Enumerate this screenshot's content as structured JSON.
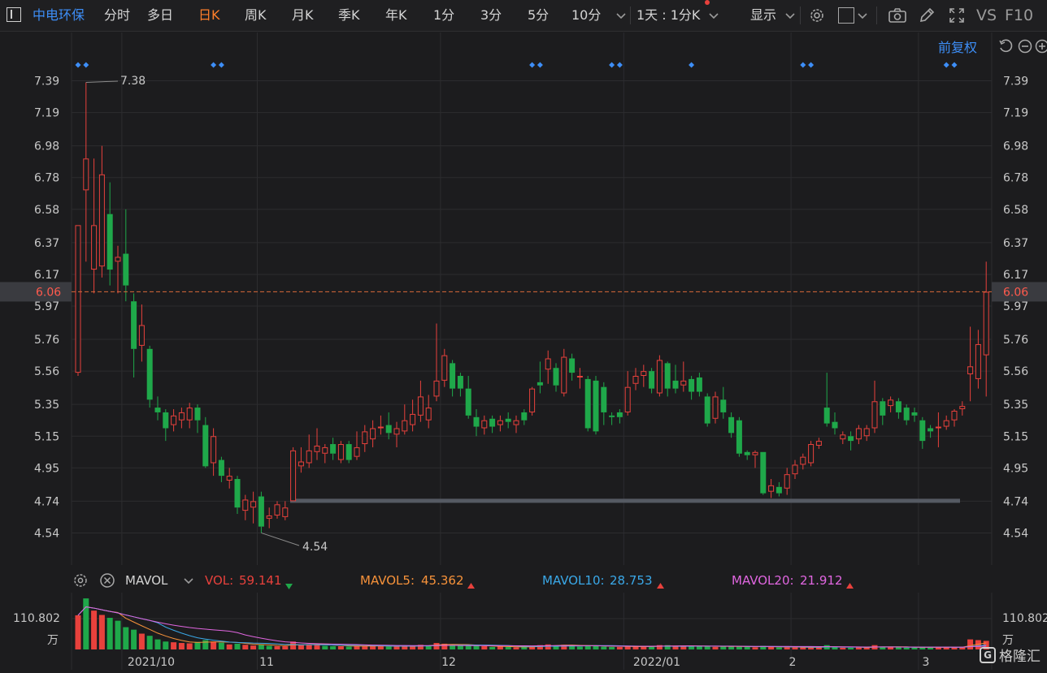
{
  "toolbar": {
    "stock_name": "中电环保",
    "periods": [
      "分时",
      "多日",
      "日K",
      "周K",
      "月K",
      "季K",
      "年K",
      "1分",
      "3分",
      "5分",
      "10分"
    ],
    "active_period": "日K",
    "range_select": "1天 : 1分K",
    "display_label": "显示",
    "vs_label": "VS",
    "f10_label": "F10"
  },
  "price_panel": {
    "adjust_label": "前复权",
    "y_ticks": [
      "7.39",
      "7.19",
      "6.98",
      "6.78",
      "6.58",
      "6.37",
      "6.17",
      "5.97",
      "5.76",
      "5.56",
      "5.35",
      "5.15",
      "4.95",
      "4.74",
      "4.54"
    ],
    "current_price": "6.06",
    "high_label": "7.38",
    "low_label": "4.54",
    "colors": {
      "up": "#e8413c",
      "down": "#1fa84a",
      "current_line": "#d96a3a",
      "grid": "#2c2c2f",
      "marker": "#3d8ef7",
      "support": "#555a63"
    }
  },
  "volume_panel": {
    "indicator": "MAVOL",
    "vol_label": "VOL:",
    "vol_value": "59.141",
    "mavol5_label": "MAVOL5:",
    "mavol5_value": "45.362",
    "mavol10_label": "MAVOL10:",
    "mavol10_value": "28.753",
    "mavol20_label": "MAVOL20:",
    "mavol20_value": "21.912",
    "max_label": "110.802",
    "unit_label": "万",
    "colors": {
      "vol": "#e8413c",
      "mavol5": "#f7923a",
      "mavol10": "#3aa8e8",
      "mavol20": "#e066e0"
    }
  },
  "x_axis": {
    "labels": [
      "2021/10",
      "11",
      "12",
      "2022/01",
      "2",
      "3"
    ]
  },
  "watermark": {
    "text": "格隆汇"
  },
  "chart_data": {
    "type": "candlestick",
    "title": "",
    "ylim": [
      4.44,
      7.49
    ],
    "candles": [
      {
        "o": 5.55,
        "c": 6.48,
        "h": 6.48,
        "l": 5.53
      },
      {
        "o": 6.7,
        "c": 6.9,
        "h": 7.38,
        "l": 6.25
      },
      {
        "o": 6.2,
        "c": 6.48,
        "h": 6.9,
        "l": 6.05
      },
      {
        "o": 6.22,
        "c": 6.8,
        "h": 6.98,
        "l": 6.15
      },
      {
        "o": 6.55,
        "c": 6.2,
        "h": 6.75,
        "l": 6.1
      },
      {
        "o": 6.25,
        "c": 6.28,
        "h": 6.35,
        "l": 6.05
      },
      {
        "o": 6.3,
        "c": 6.1,
        "h": 6.58,
        "l": 6.0
      },
      {
        "o": 6.0,
        "c": 5.7,
        "h": 6.05,
        "l": 5.52
      },
      {
        "o": 5.72,
        "c": 5.85,
        "h": 5.98,
        "l": 5.62
      },
      {
        "o": 5.7,
        "c": 5.38,
        "h": 5.72,
        "l": 5.33
      },
      {
        "o": 5.33,
        "c": 5.3,
        "h": 5.4,
        "l": 5.25
      },
      {
        "o": 5.3,
        "c": 5.2,
        "h": 5.32,
        "l": 5.12
      },
      {
        "o": 5.22,
        "c": 5.28,
        "h": 5.32,
        "l": 5.18
      },
      {
        "o": 5.25,
        "c": 5.3,
        "h": 5.33,
        "l": 5.2
      },
      {
        "o": 5.25,
        "c": 5.33,
        "h": 5.36,
        "l": 5.2
      },
      {
        "o": 5.33,
        "c": 5.25,
        "h": 5.35,
        "l": 5.17
      },
      {
        "o": 5.22,
        "c": 4.96,
        "h": 5.27,
        "l": 4.95
      },
      {
        "o": 4.98,
        "c": 5.15,
        "h": 5.2,
        "l": 4.9
      },
      {
        "o": 5.0,
        "c": 4.9,
        "h": 5.02,
        "l": 4.86
      },
      {
        "o": 4.87,
        "c": 4.9,
        "h": 4.95,
        "l": 4.82
      },
      {
        "o": 4.88,
        "c": 4.7,
        "h": 4.9,
        "l": 4.66
      },
      {
        "o": 4.68,
        "c": 4.75,
        "h": 4.78,
        "l": 4.62
      },
      {
        "o": 4.7,
        "c": 4.74,
        "h": 4.8,
        "l": 4.6
      },
      {
        "o": 4.77,
        "c": 4.58,
        "h": 4.8,
        "l": 4.54
      },
      {
        "o": 4.63,
        "c": 4.65,
        "h": 4.7,
        "l": 4.57
      },
      {
        "o": 4.65,
        "c": 4.72,
        "h": 4.74,
        "l": 4.63
      },
      {
        "o": 4.64,
        "c": 4.7,
        "h": 4.74,
        "l": 4.62
      },
      {
        "o": 4.74,
        "c": 5.06,
        "h": 5.08,
        "l": 4.74
      },
      {
        "o": 4.96,
        "c": 4.99,
        "h": 5.08,
        "l": 4.92
      },
      {
        "o": 4.98,
        "c": 5.06,
        "h": 5.16,
        "l": 4.95
      },
      {
        "o": 5.05,
        "c": 5.09,
        "h": 5.2,
        "l": 5.0
      },
      {
        "o": 5.04,
        "c": 5.08,
        "h": 5.1,
        "l": 4.98
      },
      {
        "o": 5.1,
        "c": 5.04,
        "h": 5.14,
        "l": 5.0
      },
      {
        "o": 5.0,
        "c": 5.1,
        "h": 5.12,
        "l": 4.98
      },
      {
        "o": 5.1,
        "c": 5.0,
        "h": 5.12,
        "l": 4.98
      },
      {
        "o": 5.02,
        "c": 5.08,
        "h": 5.18,
        "l": 5.0
      },
      {
        "o": 5.1,
        "c": 5.18,
        "h": 5.22,
        "l": 5.05
      },
      {
        "o": 5.13,
        "c": 5.2,
        "h": 5.25,
        "l": 5.08
      },
      {
        "o": 5.2,
        "c": 5.21,
        "h": 5.28,
        "l": 5.16
      },
      {
        "o": 5.22,
        "c": 5.17,
        "h": 5.3,
        "l": 5.13
      },
      {
        "o": 5.16,
        "c": 5.2,
        "h": 5.24,
        "l": 5.08
      },
      {
        "o": 5.18,
        "c": 5.25,
        "h": 5.35,
        "l": 5.16
      },
      {
        "o": 5.22,
        "c": 5.29,
        "h": 5.38,
        "l": 5.18
      },
      {
        "o": 5.28,
        "c": 5.4,
        "h": 5.5,
        "l": 5.24
      },
      {
        "o": 5.25,
        "c": 5.33,
        "h": 5.41,
        "l": 5.2
      },
      {
        "o": 5.4,
        "c": 5.5,
        "h": 5.86,
        "l": 5.37
      },
      {
        "o": 5.5,
        "c": 5.66,
        "h": 5.7,
        "l": 5.46
      },
      {
        "o": 5.61,
        "c": 5.45,
        "h": 5.63,
        "l": 5.4
      },
      {
        "o": 5.53,
        "c": 5.45,
        "h": 5.55,
        "l": 5.4
      },
      {
        "o": 5.45,
        "c": 5.28,
        "h": 5.53,
        "l": 5.26
      },
      {
        "o": 5.27,
        "c": 5.21,
        "h": 5.32,
        "l": 5.15
      },
      {
        "o": 5.2,
        "c": 5.25,
        "h": 5.28,
        "l": 5.16
      },
      {
        "o": 5.26,
        "c": 5.21,
        "h": 5.28,
        "l": 5.17
      },
      {
        "o": 5.22,
        "c": 5.25,
        "h": 5.28,
        "l": 5.18
      },
      {
        "o": 5.26,
        "c": 5.24,
        "h": 5.3,
        "l": 5.2
      },
      {
        "o": 5.22,
        "c": 5.25,
        "h": 5.28,
        "l": 5.17
      },
      {
        "o": 5.3,
        "c": 5.25,
        "h": 5.32,
        "l": 5.22
      },
      {
        "o": 5.3,
        "c": 5.45,
        "h": 5.46,
        "l": 5.28
      },
      {
        "o": 5.49,
        "c": 5.47,
        "h": 5.62,
        "l": 5.42
      },
      {
        "o": 5.57,
        "c": 5.64,
        "h": 5.69,
        "l": 5.48
      },
      {
        "o": 5.58,
        "c": 5.47,
        "h": 5.61,
        "l": 5.43
      },
      {
        "o": 5.42,
        "c": 5.65,
        "h": 5.7,
        "l": 5.4
      },
      {
        "o": 5.64,
        "c": 5.55,
        "h": 5.67,
        "l": 5.5
      },
      {
        "o": 5.52,
        "c": 5.53,
        "h": 5.58,
        "l": 5.45
      },
      {
        "o": 5.51,
        "c": 5.2,
        "h": 5.53,
        "l": 5.18
      },
      {
        "o": 5.5,
        "c": 5.18,
        "h": 5.53,
        "l": 5.16
      },
      {
        "o": 5.46,
        "c": 5.3,
        "h": 5.49,
        "l": 5.22
      },
      {
        "o": 5.28,
        "c": 5.27,
        "h": 5.3,
        "l": 5.22
      },
      {
        "o": 5.3,
        "c": 5.27,
        "h": 5.32,
        "l": 5.23
      },
      {
        "o": 5.3,
        "c": 5.46,
        "h": 5.56,
        "l": 5.28
      },
      {
        "o": 5.48,
        "c": 5.53,
        "h": 5.58,
        "l": 5.44
      },
      {
        "o": 5.53,
        "c": 5.56,
        "h": 5.6,
        "l": 5.46
      },
      {
        "o": 5.56,
        "c": 5.45,
        "h": 5.58,
        "l": 5.42
      },
      {
        "o": 5.42,
        "c": 5.63,
        "h": 5.66,
        "l": 5.4
      },
      {
        "o": 5.61,
        "c": 5.45,
        "h": 5.62,
        "l": 5.4
      },
      {
        "o": 5.5,
        "c": 5.45,
        "h": 5.6,
        "l": 5.42
      },
      {
        "o": 5.47,
        "c": 5.5,
        "h": 5.62,
        "l": 5.43
      },
      {
        "o": 5.51,
        "c": 5.43,
        "h": 5.53,
        "l": 5.38
      },
      {
        "o": 5.52,
        "c": 5.43,
        "h": 5.55,
        "l": 5.4
      },
      {
        "o": 5.4,
        "c": 5.23,
        "h": 5.42,
        "l": 5.21
      },
      {
        "o": 5.26,
        "c": 5.4,
        "h": 5.43,
        "l": 5.23
      },
      {
        "o": 5.38,
        "c": 5.3,
        "h": 5.46,
        "l": 5.26
      },
      {
        "o": 5.27,
        "c": 5.17,
        "h": 5.3,
        "l": 5.14
      },
      {
        "o": 5.25,
        "c": 5.04,
        "h": 5.27,
        "l": 5.02
      },
      {
        "o": 5.05,
        "c": 5.03,
        "h": 5.06,
        "l": 5.0
      },
      {
        "o": 5.03,
        "c": 5.05,
        "h": 5.06,
        "l": 4.95
      },
      {
        "o": 5.05,
        "c": 4.79,
        "h": 5.05,
        "l": 4.78
      },
      {
        "o": 4.8,
        "c": 4.84,
        "h": 4.88,
        "l": 4.76
      },
      {
        "o": 4.83,
        "c": 4.79,
        "h": 4.86,
        "l": 4.77
      },
      {
        "o": 4.82,
        "c": 4.91,
        "h": 4.95,
        "l": 4.78
      },
      {
        "o": 4.91,
        "c": 4.97,
        "h": 5.0,
        "l": 4.88
      },
      {
        "o": 4.97,
        "c": 5.02,
        "h": 5.04,
        "l": 4.94
      },
      {
        "o": 4.98,
        "c": 5.1,
        "h": 5.12,
        "l": 4.96
      },
      {
        "o": 5.09,
        "c": 5.12,
        "h": 5.14,
        "l": 5.07
      },
      {
        "o": 5.33,
        "c": 5.23,
        "h": 5.55,
        "l": 5.21
      },
      {
        "o": 5.24,
        "c": 5.2,
        "h": 5.3,
        "l": 5.16
      },
      {
        "o": 5.13,
        "c": 5.16,
        "h": 5.18,
        "l": 5.1
      },
      {
        "o": 5.15,
        "c": 5.12,
        "h": 5.18,
        "l": 5.06
      },
      {
        "o": 5.13,
        "c": 5.2,
        "h": 5.22,
        "l": 5.1
      },
      {
        "o": 5.15,
        "c": 5.2,
        "h": 5.22,
        "l": 5.12
      },
      {
        "o": 5.2,
        "c": 5.37,
        "h": 5.5,
        "l": 5.17
      },
      {
        "o": 5.37,
        "c": 5.28,
        "h": 5.39,
        "l": 5.22
      },
      {
        "o": 5.34,
        "c": 5.38,
        "h": 5.4,
        "l": 5.3
      },
      {
        "o": 5.37,
        "c": 5.3,
        "h": 5.39,
        "l": 5.26
      },
      {
        "o": 5.33,
        "c": 5.25,
        "h": 5.35,
        "l": 5.22
      },
      {
        "o": 5.3,
        "c": 5.28,
        "h": 5.33,
        "l": 5.24
      },
      {
        "o": 5.25,
        "c": 5.12,
        "h": 5.27,
        "l": 5.07
      },
      {
        "o": 5.2,
        "c": 5.18,
        "h": 5.22,
        "l": 5.14
      },
      {
        "o": 5.2,
        "c": 5.21,
        "h": 5.3,
        "l": 5.08
      },
      {
        "o": 5.21,
        "c": 5.25,
        "h": 5.28,
        "l": 5.19
      },
      {
        "o": 5.25,
        "c": 5.31,
        "h": 5.32,
        "l": 5.21
      },
      {
        "o": 5.32,
        "c": 5.34,
        "h": 5.37,
        "l": 5.28
      },
      {
        "o": 5.54,
        "c": 5.59,
        "h": 5.84,
        "l": 5.37
      },
      {
        "o": 5.51,
        "c": 5.73,
        "h": 5.82,
        "l": 5.45
      },
      {
        "o": 5.66,
        "c": 6.06,
        "h": 6.25,
        "l": 5.4
      }
    ],
    "volume": [
      {
        "v": 95,
        "up": 1
      },
      {
        "v": 142,
        "up": 0
      },
      {
        "v": 108,
        "up": 1
      },
      {
        "v": 96,
        "up": 1
      },
      {
        "v": 88,
        "up": 0
      },
      {
        "v": 80,
        "up": 0
      },
      {
        "v": 62,
        "up": 0
      },
      {
        "v": 55,
        "up": 0
      },
      {
        "v": 44,
        "up": 1
      },
      {
        "v": 38,
        "up": 0
      },
      {
        "v": 28,
        "up": 0
      },
      {
        "v": 22,
        "up": 0
      },
      {
        "v": 20,
        "up": 1
      },
      {
        "v": 18,
        "up": 1
      },
      {
        "v": 17,
        "up": 1
      },
      {
        "v": 21,
        "up": 0
      },
      {
        "v": 26,
        "up": 0
      },
      {
        "v": 22,
        "up": 1
      },
      {
        "v": 19,
        "up": 0
      },
      {
        "v": 14,
        "up": 1
      },
      {
        "v": 16,
        "up": 0
      },
      {
        "v": 13,
        "up": 1
      },
      {
        "v": 11,
        "up": 1
      },
      {
        "v": 14,
        "up": 0
      },
      {
        "v": 10,
        "up": 0
      },
      {
        "v": 9,
        "up": 1
      },
      {
        "v": 9,
        "up": 1
      },
      {
        "v": 22,
        "up": 1
      },
      {
        "v": 13,
        "up": 1
      },
      {
        "v": 15,
        "up": 1
      },
      {
        "v": 13,
        "up": 1
      },
      {
        "v": 10,
        "up": 0
      },
      {
        "v": 9,
        "up": 0
      },
      {
        "v": 9,
        "up": 1
      },
      {
        "v": 8,
        "up": 0
      },
      {
        "v": 10,
        "up": 1
      },
      {
        "v": 10,
        "up": 1
      },
      {
        "v": 11,
        "up": 1
      },
      {
        "v": 9,
        "up": 1
      },
      {
        "v": 8,
        "up": 0
      },
      {
        "v": 8,
        "up": 1
      },
      {
        "v": 10,
        "up": 1
      },
      {
        "v": 10,
        "up": 1
      },
      {
        "v": 13,
        "up": 1
      },
      {
        "v": 11,
        "up": 0
      },
      {
        "v": 18,
        "up": 1
      },
      {
        "v": 16,
        "up": 1
      },
      {
        "v": 12,
        "up": 0
      },
      {
        "v": 12,
        "up": 0
      },
      {
        "v": 10,
        "up": 0
      },
      {
        "v": 10,
        "up": 0
      },
      {
        "v": 9,
        "up": 1
      },
      {
        "v": 7,
        "up": 0
      },
      {
        "v": 8,
        "up": 1
      },
      {
        "v": 7,
        "up": 0
      },
      {
        "v": 6,
        "up": 1
      },
      {
        "v": 7,
        "up": 0
      },
      {
        "v": 9,
        "up": 1
      },
      {
        "v": 12,
        "up": 1
      },
      {
        "v": 14,
        "up": 1
      },
      {
        "v": 11,
        "up": 0
      },
      {
        "v": 13,
        "up": 1
      },
      {
        "v": 10,
        "up": 0
      },
      {
        "v": 8,
        "up": 0
      },
      {
        "v": 12,
        "up": 0
      },
      {
        "v": 11,
        "up": 0
      },
      {
        "v": 8,
        "up": 0
      },
      {
        "v": 7,
        "up": 0
      },
      {
        "v": 7,
        "up": 1
      },
      {
        "v": 9,
        "up": 1
      },
      {
        "v": 8,
        "up": 1
      },
      {
        "v": 8,
        "up": 1
      },
      {
        "v": 7,
        "up": 0
      },
      {
        "v": 12,
        "up": 1
      },
      {
        "v": 12,
        "up": 0
      },
      {
        "v": 9,
        "up": 1
      },
      {
        "v": 9,
        "up": 1
      },
      {
        "v": 9,
        "up": 0
      },
      {
        "v": 9,
        "up": 0
      },
      {
        "v": 10,
        "up": 0
      },
      {
        "v": 7,
        "up": 1
      },
      {
        "v": 9,
        "up": 0
      },
      {
        "v": 8,
        "up": 0
      },
      {
        "v": 8,
        "up": 0
      },
      {
        "v": 7,
        "up": 0
      },
      {
        "v": 6,
        "up": 1
      },
      {
        "v": 10,
        "up": 0
      },
      {
        "v": 7,
        "up": 1
      },
      {
        "v": 6,
        "up": 0
      },
      {
        "v": 6,
        "up": 1
      },
      {
        "v": 6,
        "up": 1
      },
      {
        "v": 6,
        "up": 1
      },
      {
        "v": 6,
        "up": 1
      },
      {
        "v": 6,
        "up": 1
      },
      {
        "v": 12,
        "up": 0
      },
      {
        "v": 6,
        "up": 0
      },
      {
        "v": 5,
        "up": 1
      },
      {
        "v": 5,
        "up": 0
      },
      {
        "v": 6,
        "up": 1
      },
      {
        "v": 5,
        "up": 1
      },
      {
        "v": 12,
        "up": 1
      },
      {
        "v": 7,
        "up": 0
      },
      {
        "v": 6,
        "up": 1
      },
      {
        "v": 6,
        "up": 0
      },
      {
        "v": 5,
        "up": 0
      },
      {
        "v": 5,
        "up": 0
      },
      {
        "v": 7,
        "up": 0
      },
      {
        "v": 6,
        "up": 0
      },
      {
        "v": 6,
        "up": 1
      },
      {
        "v": 6,
        "up": 1
      },
      {
        "v": 6,
        "up": 1
      },
      {
        "v": 7,
        "up": 1
      },
      {
        "v": 28,
        "up": 1
      },
      {
        "v": 26,
        "up": 1
      },
      {
        "v": 24,
        "up": 1
      }
    ],
    "vol_ylim": [
      0,
      140
    ]
  }
}
